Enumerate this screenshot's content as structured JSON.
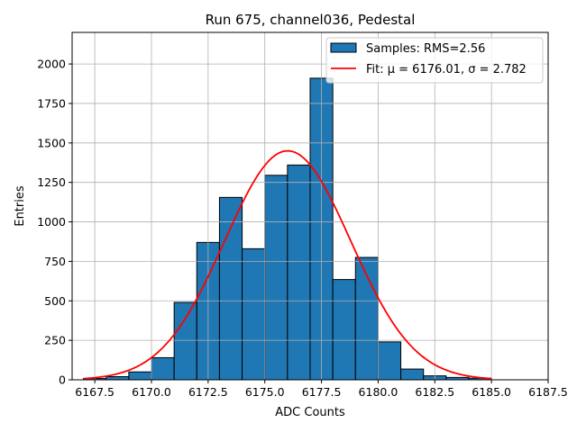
{
  "chart_data": {
    "type": "bar",
    "title": "Run 675, channel036, Pedestal",
    "xlabel": "ADC Counts",
    "ylabel": "Entries",
    "xlim": [
      6166.5,
      6187.5
    ],
    "ylim": [
      0,
      2200
    ],
    "grid": true,
    "legend_position": "top-right",
    "bar_color": "#1f77b4",
    "fit_color": "#ff0000",
    "x_ticks": [
      6167.5,
      6170.0,
      6172.5,
      6175.0,
      6177.5,
      6180.0,
      6182.5,
      6185.0,
      6187.5
    ],
    "x_tick_labels": [
      "6167.5",
      "6170.0",
      "6172.5",
      "6175.0",
      "6177.5",
      "6180.0",
      "6182.5",
      "6185.0",
      "6187.5"
    ],
    "y_ticks": [
      0,
      250,
      500,
      750,
      1000,
      1250,
      1500,
      1750,
      2000
    ],
    "y_tick_labels": [
      "0",
      "250",
      "500",
      "750",
      "1000",
      "1250",
      "1500",
      "1750",
      "2000"
    ],
    "bin_edges": [
      6167,
      6168,
      6169,
      6170,
      6171,
      6172,
      6173,
      6174,
      6175,
      6176,
      6177,
      6178,
      6179,
      6180,
      6181,
      6182,
      6183,
      6184,
      6185
    ],
    "values": [
      8,
      20,
      50,
      140,
      490,
      870,
      1155,
      830,
      1295,
      1360,
      1910,
      635,
      775,
      240,
      68,
      25,
      15,
      10
    ],
    "fit": {
      "mu": 6176.01,
      "sigma": 2.782,
      "amplitude": 1450,
      "x_range": [
        6167,
        6185
      ]
    },
    "legend": [
      {
        "kind": "patch",
        "label": "Samples: RMS=2.56"
      },
      {
        "kind": "line",
        "label": "Fit: μ = 6176.01, σ = 2.782"
      }
    ]
  }
}
